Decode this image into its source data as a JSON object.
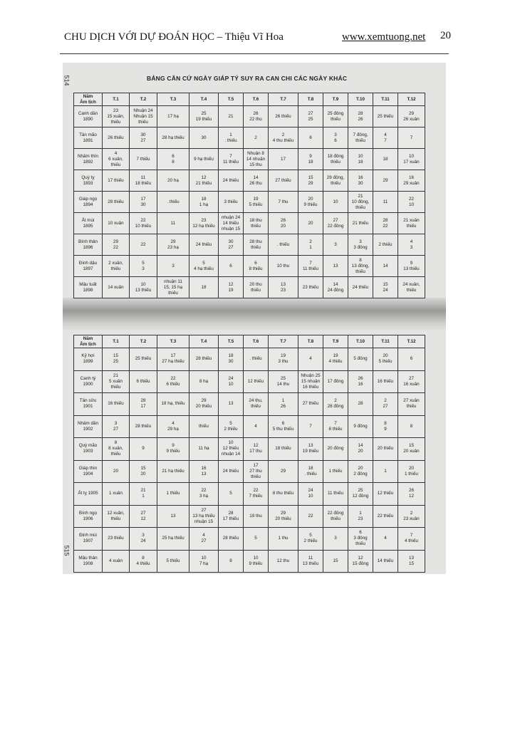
{
  "header": {
    "title": "CHU DỊCH VỚI DỰ ĐOÁN HỌC – Thiệu Vĩ Hoa",
    "url": "www.xemtuong.net",
    "page_number": "20"
  },
  "scan": {
    "title": "BẢNG CĂN CỨ NGÀY GIÁP TÝ SUY RA CAN CHI CÁC NGÀY KHÁC",
    "side_page_top": "514",
    "side_page_bottom": "515",
    "columns": [
      "Năm\nÂm lịch",
      "T.1",
      "T.2",
      "T.3",
      "T.4",
      "T.5",
      "T.6",
      "T.7",
      "T.8",
      "T.9",
      "T.10",
      "T.11",
      "T.12"
    ],
    "table1": [
      [
        "Canh dần\n1890",
        "23\n15 xuân,\nthiếu",
        "Nhuận 24\nNhuận 15\nthiếu",
        "17 hạ",
        "25\n19 thiếu",
        "21",
        "26\n22 thu",
        "26 thiếu",
        "27\n25",
        "25 đông\nthiếu",
        "28\n26",
        "25 thiếu",
        "29\n26 xuân"
      ],
      [
        "Tân mão\n1891",
        "26 thiếu",
        "30\n27",
        "28 hạ thiếu",
        "30",
        "1\n. thiếu",
        "2",
        "2\n4 thu thiếu",
        "6",
        "3\n6",
        "7 đông,\nthiếu",
        "4\n7",
        "7"
      ],
      [
        "Nhâm thìn\n1892",
        "4\n6 xuân,\nthiếu",
        "7 thiếu",
        "6\n8",
        "9 hạ thiếu",
        "7\n11 thiếu",
        "Nhuận 8\n14 nhuận\n15 thu",
        "17",
        "9\n18",
        "18 đông\nthiếu",
        "10\n18",
        "18",
        "10\n17 xuân"
      ],
      [
        "Quý tỵ\n1893",
        "17 thiếu",
        "11\n18 thiếu",
        "20 hạ",
        "12\n21 thiếu",
        "24 thiếu",
        "14\n26 thu",
        "27 thiếu",
        "15\n29",
        "29 đông,\nthiếu",
        "16\n30",
        "29",
        "16\n29 xuân"
      ],
      [
        "Giáp ngọ\n1894",
        "28 thiếu",
        "17\n30",
        ". thiếu",
        "18\n1 hạ",
        "3 thiếu",
        "19\n5 thiếu",
        "7 thu",
        "20\n9 thiếu",
        "10",
        "21\n10 đông,\nthiếu",
        "11",
        "22\n10"
      ],
      [
        "Ất mùi\n1895",
        "10 xuân",
        "22\n10 thiếu",
        "11",
        "23\n12 hạ thiếu",
        "nhuận 24\n14 thiếu\nnhuận 15",
        "18 thu\nthiếu",
        "26\n20",
        "20",
        "27\n22 đông",
        "21 thiếu",
        "28\n22",
        "21 xuân\nthiếu"
      ],
      [
        "Bính thân\n1896",
        "29\n22",
        "22",
        "29\n23 hạ",
        "24 thiếu",
        "30\n27",
        "28 thu\nthiếu",
        ". thiếu",
        "2\n1",
        "3",
        "3\n3 đông",
        "2 thiếu",
        "4\n3"
      ],
      [
        "Đinh dậu\n1897",
        "2 xuân,\nthiếu",
        "5\n3",
        "3",
        "5\n4 hạ thiếu",
        "6",
        "6\n8 thiếu",
        "10 thu",
        "7\n11 thiếu",
        "13",
        "8\n13 đông,\nthiếu",
        "14",
        "9\n13 thiếu"
      ],
      [
        "Mậu tuất\n1898",
        "14 xuân",
        "10\n13 thiếu",
        "nhuận 11\n15, 15 hạ\nthiếu",
        "18",
        "12\n19",
        "20 thu\nthiếu",
        "13\n23",
        "23 thiếu",
        "14\n24 đông",
        "24 thiếu",
        "15\n24",
        "24 xuân,\nthiếu"
      ]
    ],
    "table2": [
      [
        "Kỷ hợi\n1899",
        "15\n25",
        "25 thiếu",
        "17\n27 hạ thiếu",
        "28 thiếu",
        "18\n30",
        ". thiếu",
        "19\n3 thu",
        "4",
        "19\n4 thiếu",
        "5 đông",
        "20\n5 thiếu",
        "6"
      ],
      [
        "Canh tý\n1900",
        "21\n5 xuân\nthiếu",
        "6 thiếu",
        "22\n6 thiếu",
        "8 hạ",
        "24\n10",
        "12 thiếu",
        "25\n14 thu",
        "Nhuận 25\n15 nhuận\n16 thiếu",
        "17 đông",
        "26\n16",
        "16 thiếu",
        "27\n16 xuân"
      ],
      [
        "Tân sửu\n1901",
        "16 thiếu",
        "28\n17",
        "18 hạ, thiếu",
        "29\n20 thiếu",
        "13",
        "24 thu,\nthiếu",
        "1\n26",
        "27 thiếu",
        "2\n28 đông",
        "28",
        "2\n27",
        "27 xuân\nthiếu"
      ],
      [
        "Nhâm dần\n1902",
        "3\n27",
        "28 thiếu",
        "4\n29 hạ",
        "thiếu",
        "5\n2 thiếu",
        "4",
        "6\n5 thu thiếu",
        "7",
        "7\n8 thiếu",
        "9 đông",
        "8\n9",
        "8"
      ],
      [
        "Quý mão\n1903",
        "8\n8 xuân,\nthiếu",
        "9",
        "9\n9 thiếu",
        "11 hạ",
        "10\n12 thiếu\nnhuận 14",
        "12\n17 thu",
        "18 thiếu",
        "13\n19 thiếu",
        "20 đông",
        "14\n20",
        "20 thiếu",
        "15\n20 xuân"
      ],
      [
        "Giáp thìn\n1904",
        "20",
        "15\n20",
        "21 hạ thiếu",
        "16\n13",
        "24 thiếu",
        "17\n27 thu\nthiếu",
        "29",
        "18\n. thiếu",
        "1 thiếu",
        "20\n2 đông",
        "1",
        "20\n1 thiếu"
      ],
      [
        "Ất tỵ 1905",
        "1 xuân",
        "21\n1",
        "1 thiếu",
        "22\n3 hạ",
        "5",
        "22\n7 thiếu",
        "8 thu thiếu",
        "24\n10",
        "11 thiếu",
        "25\n12 đông",
        "12 thiếu",
        "26\n12"
      ],
      [
        "Bính ngọ\n1906",
        "12 xuân,\nthiếu",
        "27\n12",
        "13",
        "27\n13 hạ thiếu\nnhuận 15",
        "28\n17 thiếu",
        "19 thu",
        "29\n20 thiếu",
        "22",
        "22 đông\nthiếu",
        "1\n23",
        "22 thiếu",
        "2\n23 xuân"
      ],
      [
        "Đinh mùi\n1907",
        "23 thiếu",
        "3\n24",
        "25 hạ thiếu",
        "4\n27",
        "28 thiếu",
        "5",
        "1 thu",
        "5\n2 thiếu",
        "3",
        "6\n3 đông\nthiếu",
        "4",
        "7\n4 thiếu"
      ],
      [
        "Mậu thân\n1908",
        "4 xuân",
        "8\n4 thiếu",
        "5 thiếu",
        "10\n7 hạ",
        "8",
        "10\n9 thiếu",
        "12 thu",
        "11\n13 thiếu",
        "15",
        "12\n15 đông",
        "14 thiếu",
        "13\n15"
      ]
    ]
  }
}
